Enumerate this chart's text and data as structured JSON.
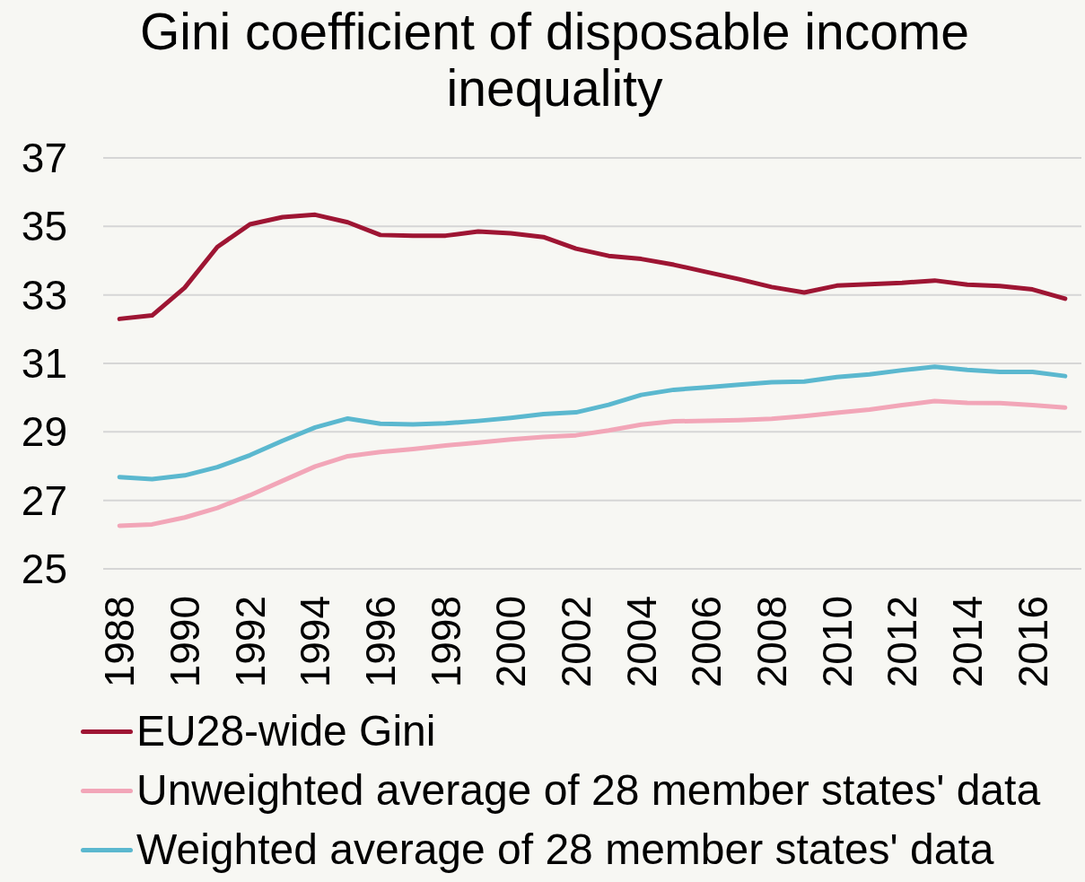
{
  "chart_data": {
    "type": "line",
    "title": "Gini coefficient of disposable income inequality",
    "categories": [
      "1988",
      null,
      "1990",
      null,
      "1992",
      null,
      "1994",
      null,
      "1996",
      null,
      "1998",
      null,
      "2000",
      null,
      "2002",
      null,
      "2004",
      null,
      "2006",
      null,
      "2008",
      null,
      "2010",
      null,
      "2012",
      null,
      "2014",
      null,
      "2016",
      null
    ],
    "series": [
      {
        "name": "EU28-wide Gini",
        "color": "#9e1533",
        "values": [
          32.3,
          32.4,
          33.21,
          34.4,
          35.06,
          35.27,
          35.34,
          35.12,
          34.75,
          34.73,
          34.73,
          34.85,
          34.8,
          34.69,
          34.35,
          34.14,
          34.05,
          33.88,
          33.67,
          33.46,
          33.23,
          33.07,
          33.27,
          33.31,
          33.35,
          33.42,
          33.3,
          33.26,
          33.16,
          32.89
        ]
      },
      {
        "name": "Unweighted average of 28 member states' data",
        "color": "#f2a6b8",
        "values": [
          26.26,
          26.3,
          26.5,
          26.78,
          27.15,
          27.57,
          27.99,
          28.29,
          28.41,
          28.5,
          28.6,
          28.69,
          28.78,
          28.85,
          28.9,
          29.04,
          29.21,
          29.31,
          29.32,
          29.34,
          29.38,
          29.46,
          29.56,
          29.65,
          29.78,
          29.9,
          29.85,
          29.84,
          29.78,
          29.71
        ]
      },
      {
        "name": "Weighted average of 28 member states' data",
        "color": "#5bb8cf",
        "values": [
          27.68,
          27.62,
          27.73,
          27.97,
          28.32,
          28.74,
          29.13,
          29.39,
          29.24,
          29.22,
          29.25,
          29.32,
          29.41,
          29.52,
          29.57,
          29.79,
          30.08,
          30.23,
          30.3,
          30.38,
          30.45,
          30.47,
          30.6,
          30.68,
          30.8,
          30.9,
          30.81,
          30.75,
          30.75,
          30.63
        ]
      }
    ],
    "ylim": [
      25,
      37
    ],
    "yticks": [
      25,
      27,
      29,
      31,
      33,
      35,
      37
    ],
    "grid": "y",
    "legend": "bottom",
    "line_style": "solid"
  }
}
